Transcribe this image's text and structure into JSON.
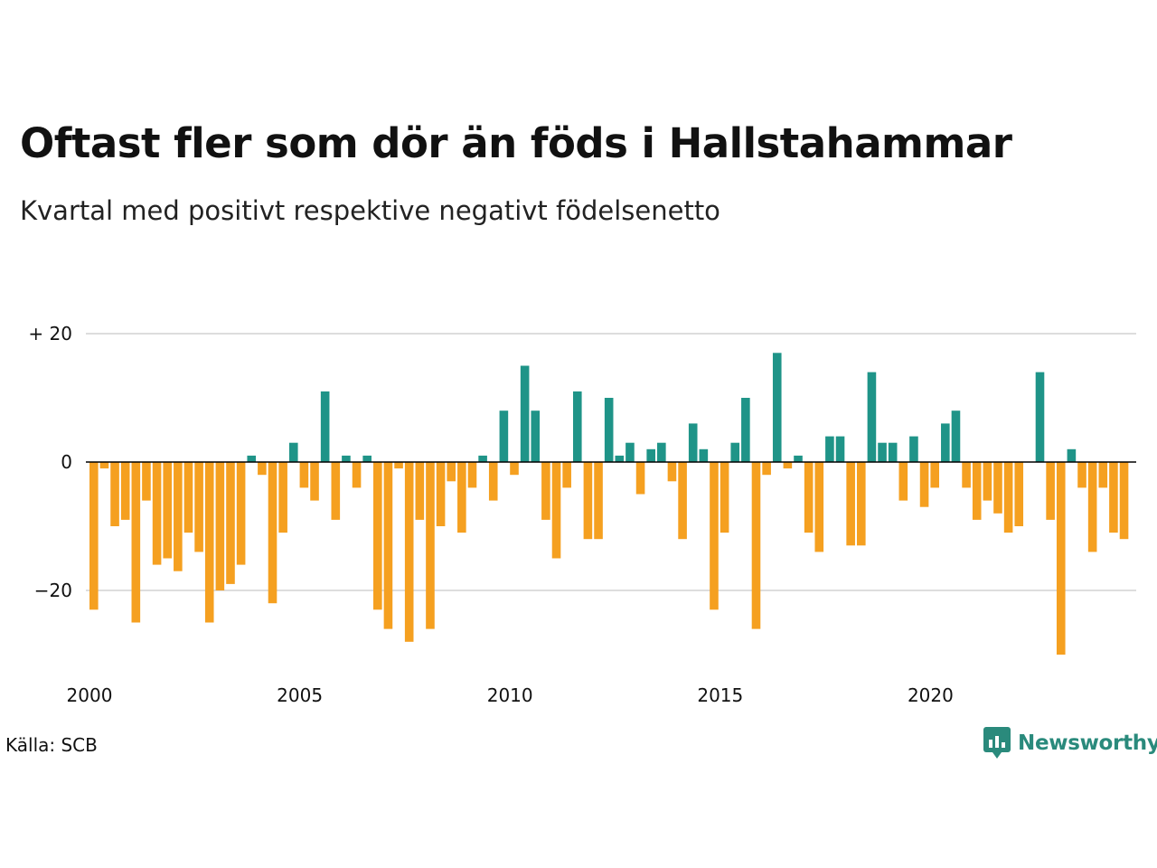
{
  "title": "Oftast fler som dör än föds i Hallstahammar",
  "subtitle": "Kvartal med positivt respektive negativt födelsenetto",
  "source": "Källa: SCB",
  "logo_text": "Newsworthy",
  "colors": {
    "positive": "#1f9488",
    "negative": "#f5a020",
    "grid": "#dddddd",
    "zero": "#000000"
  },
  "chart_data": {
    "type": "bar",
    "x_start": "2000 Q1",
    "x_ticks": [
      {
        "value": 2000,
        "label": "2000"
      },
      {
        "value": 2005,
        "label": "2005"
      },
      {
        "value": 2010,
        "label": "2010"
      },
      {
        "value": 2015,
        "label": "2015"
      },
      {
        "value": 2020,
        "label": "2020"
      }
    ],
    "y_ticks": [
      {
        "value": 20,
        "label": "+ 20"
      },
      {
        "value": 0,
        "label": "0"
      },
      {
        "value": -20,
        "label": "−20"
      }
    ],
    "ylim": [
      -30,
      20
    ],
    "grid": true,
    "values": [
      -23,
      -1,
      -10,
      -9,
      -25,
      -6,
      -16,
      -15,
      -17,
      -11,
      -14,
      -25,
      -20,
      -19,
      -16,
      1,
      -2,
      -22,
      -11,
      3,
      -4,
      -6,
      11,
      -9,
      1,
      -4,
      1,
      -23,
      -26,
      -1,
      -28,
      -9,
      -26,
      -10,
      -3,
      -11,
      -4,
      1,
      -6,
      8,
      -2,
      15,
      8,
      -9,
      -15,
      -4,
      11,
      -12,
      -12,
      10,
      1,
      3,
      -5,
      2,
      3,
      -3,
      -12,
      6,
      2,
      -23,
      -11,
      3,
      10,
      -26,
      -2,
      17,
      -1,
      1,
      -11,
      -14,
      4,
      4,
      -13,
      -13,
      14,
      3,
      3,
      -6,
      4,
      -7,
      -4,
      6,
      8,
      -4,
      -9,
      -6,
      -8,
      -11,
      -10,
      0,
      14,
      -9,
      -30,
      2,
      -4,
      -14,
      -4,
      -11,
      -12
    ]
  }
}
